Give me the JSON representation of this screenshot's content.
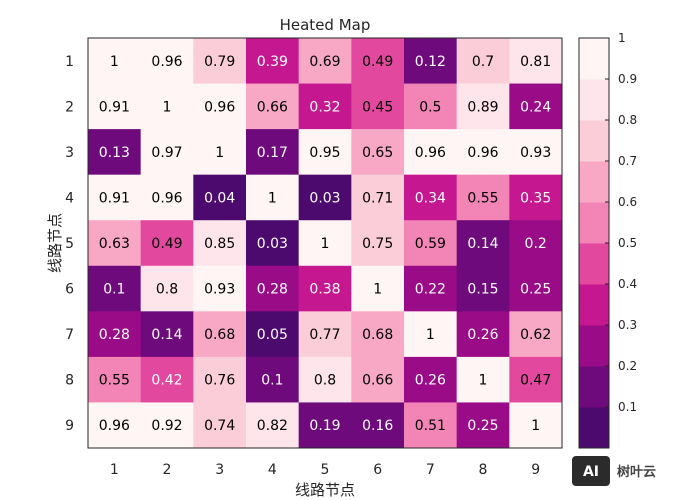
{
  "chart_data": {
    "type": "heatmap",
    "title": "Heated Map",
    "xlabel": "线路节点",
    "ylabel": "线路节点",
    "x_categories": [
      "1",
      "2",
      "3",
      "4",
      "5",
      "6",
      "7",
      "8",
      "9"
    ],
    "y_categories": [
      "1",
      "2",
      "3",
      "4",
      "5",
      "6",
      "7",
      "8",
      "9"
    ],
    "values": [
      [
        1,
        0.96,
        0.79,
        0.39,
        0.69,
        0.49,
        0.12,
        0.7,
        0.81
      ],
      [
        0.91,
        1,
        0.96,
        0.66,
        0.32,
        0.45,
        0.5,
        0.89,
        0.24
      ],
      [
        0.13,
        0.97,
        1,
        0.17,
        0.95,
        0.65,
        0.96,
        0.96,
        0.93
      ],
      [
        0.91,
        0.96,
        0.04,
        1,
        0.03,
        0.71,
        0.34,
        0.55,
        0.35
      ],
      [
        0.63,
        0.49,
        0.85,
        0.03,
        1,
        0.75,
        0.59,
        0.14,
        0.2
      ],
      [
        0.1,
        0.8,
        0.93,
        0.28,
        0.38,
        1,
        0.22,
        0.15,
        0.25
      ],
      [
        0.28,
        0.14,
        0.68,
        0.05,
        0.77,
        0.68,
        1,
        0.26,
        0.62
      ],
      [
        0.55,
        0.42,
        0.76,
        0.1,
        0.8,
        0.66,
        0.26,
        1,
        0.47
      ],
      [
        0.96,
        0.92,
        0.74,
        0.82,
        0.19,
        0.16,
        0.51,
        0.25,
        1
      ]
    ],
    "colorbar": {
      "range": [
        0,
        1
      ],
      "ticks": [
        "0.1",
        "0.2",
        "0.3",
        "0.4",
        "0.5",
        "0.6",
        "0.7",
        "0.8",
        "0.9",
        "1"
      ],
      "colors": [
        "#4c0a6e",
        "#6e0a7c",
        "#9a0b87",
        "#c5178f",
        "#e3489f",
        "#f285b5",
        "#f8a8c4",
        "#fbcdd8",
        "#fde5eb",
        "#fff5f5"
      ]
    },
    "grid": false
  },
  "watermark": {
    "badge": "AI",
    "text": "树叶云"
  }
}
